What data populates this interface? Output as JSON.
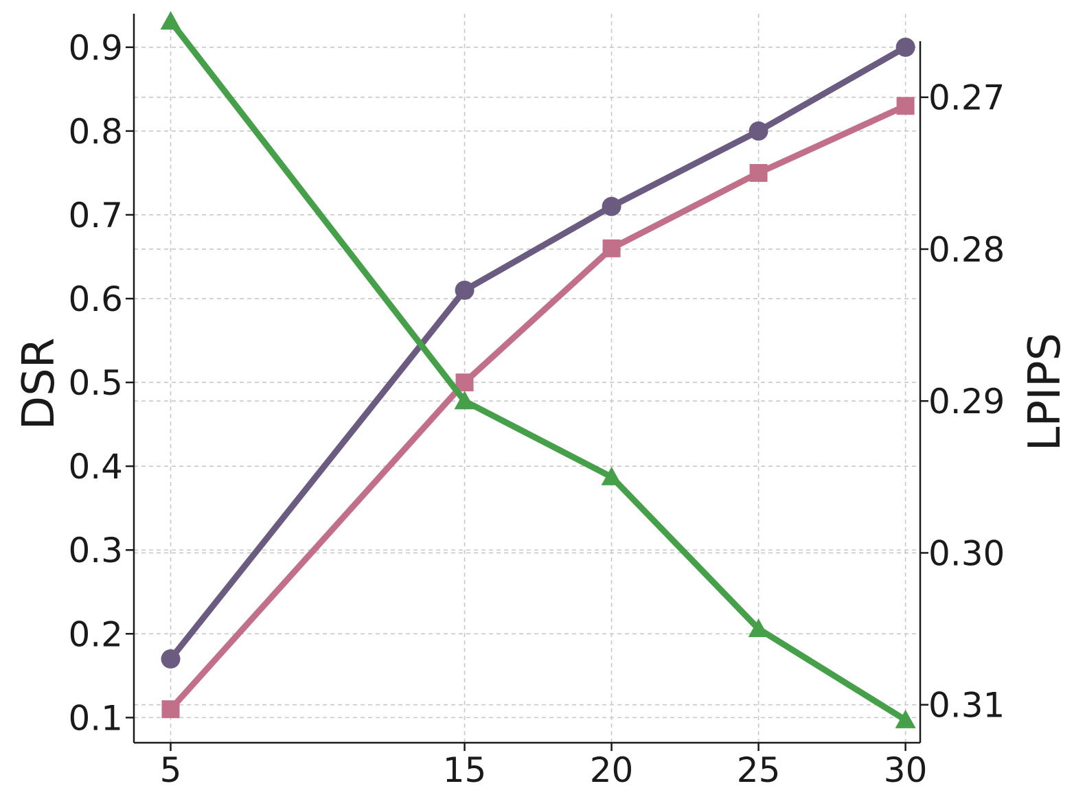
{
  "chart_data": {
    "type": "line",
    "title": "",
    "xlabel": "",
    "ylabel": "DSR",
    "y2label": "LPIPS",
    "x": [
      5,
      15,
      20,
      25,
      30
    ],
    "xticks": [
      "5",
      "15",
      "20",
      "25",
      "30"
    ],
    "ylim": [
      0.07,
      0.94
    ],
    "yticks": [
      "0.1",
      "0.2",
      "0.3",
      "0.4",
      "0.5",
      "0.6",
      "0.7",
      "0.8",
      "0.9"
    ],
    "y2lim": [
      0.3125,
      0.2645
    ],
    "y2_inverted": true,
    "y2ticks": [
      "0.27",
      "0.28",
      "0.29",
      "0.30",
      "0.31"
    ],
    "grid": true,
    "legend": "none",
    "series": [
      {
        "axis": "left",
        "marker": "circle",
        "color": "#6b5b80",
        "values": [
          0.17,
          0.61,
          0.71,
          0.8,
          0.9
        ]
      },
      {
        "axis": "left",
        "marker": "square",
        "color": "#c2708a",
        "values": [
          0.11,
          0.5,
          0.66,
          0.75,
          0.83
        ]
      },
      {
        "axis": "right",
        "marker": "triangle",
        "color": "#46a049",
        "values": [
          0.265,
          0.29,
          0.295,
          0.305,
          0.311
        ]
      }
    ]
  }
}
